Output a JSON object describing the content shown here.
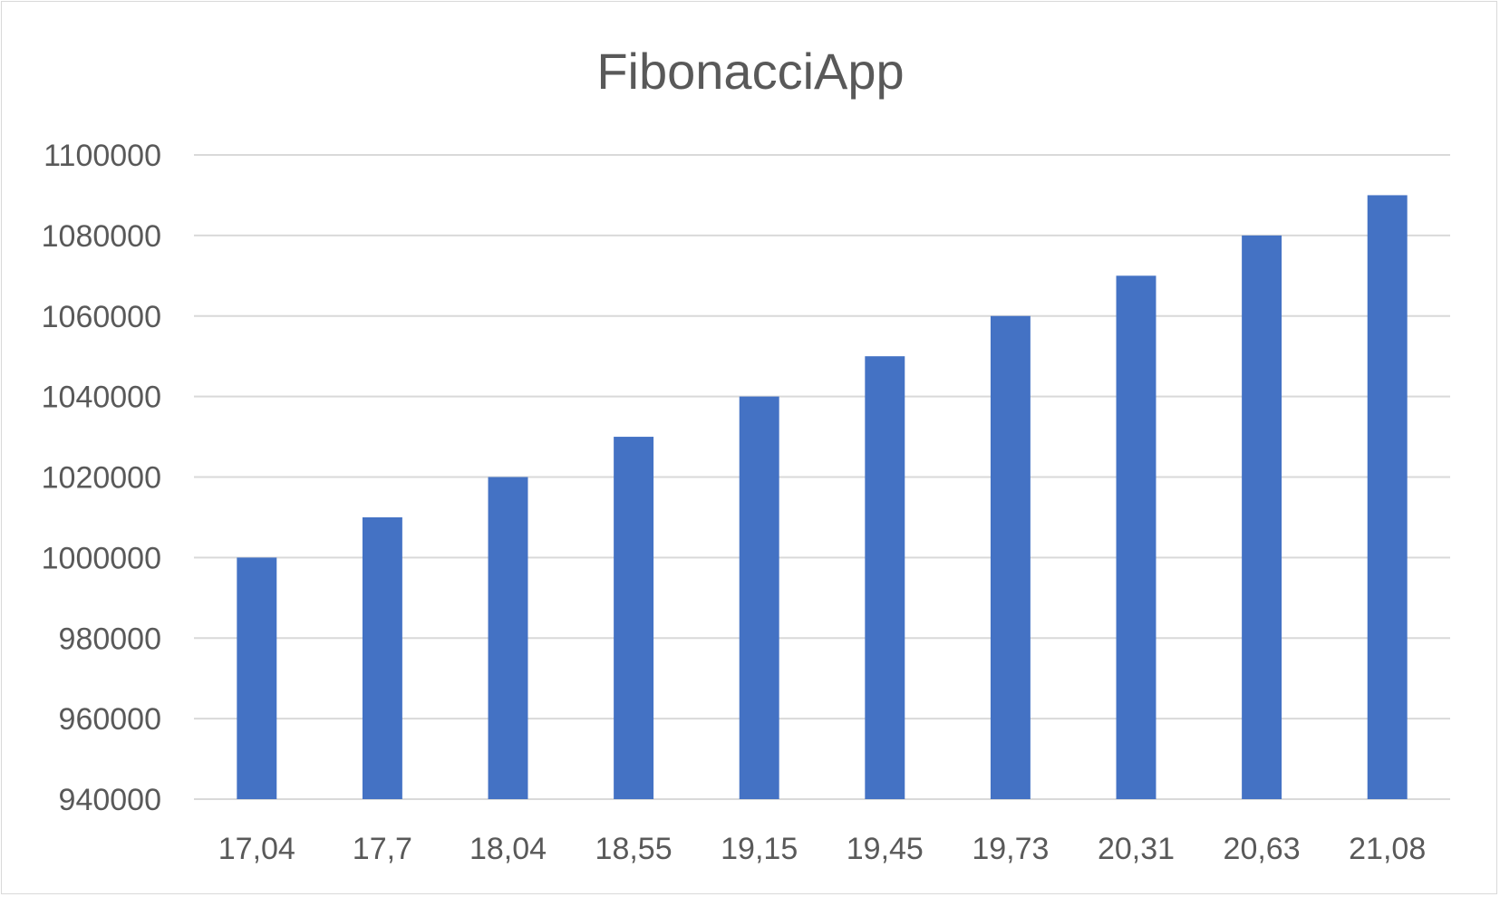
{
  "chart_data": {
    "type": "bar",
    "title": "FibonacciApp",
    "xlabel": "",
    "ylabel": "",
    "categories": [
      "17,04",
      "17,7",
      "18,04",
      "18,55",
      "19,15",
      "19,45",
      "19,73",
      "20,31",
      "20,63",
      "21,08"
    ],
    "values": [
      1000000,
      1010000,
      1020000,
      1030000,
      1040000,
      1050000,
      1060000,
      1070000,
      1080000,
      1090000
    ],
    "ylim": [
      940000,
      1100000
    ],
    "y_ticks": [
      "940000",
      "960000",
      "980000",
      "1000000",
      "1020000",
      "1040000",
      "1060000",
      "1080000",
      "1100000"
    ],
    "grid": true,
    "legend": "none",
    "colors": {
      "bar": "#4472c4",
      "gridline": "#d9d9d9",
      "text": "#595959"
    }
  }
}
